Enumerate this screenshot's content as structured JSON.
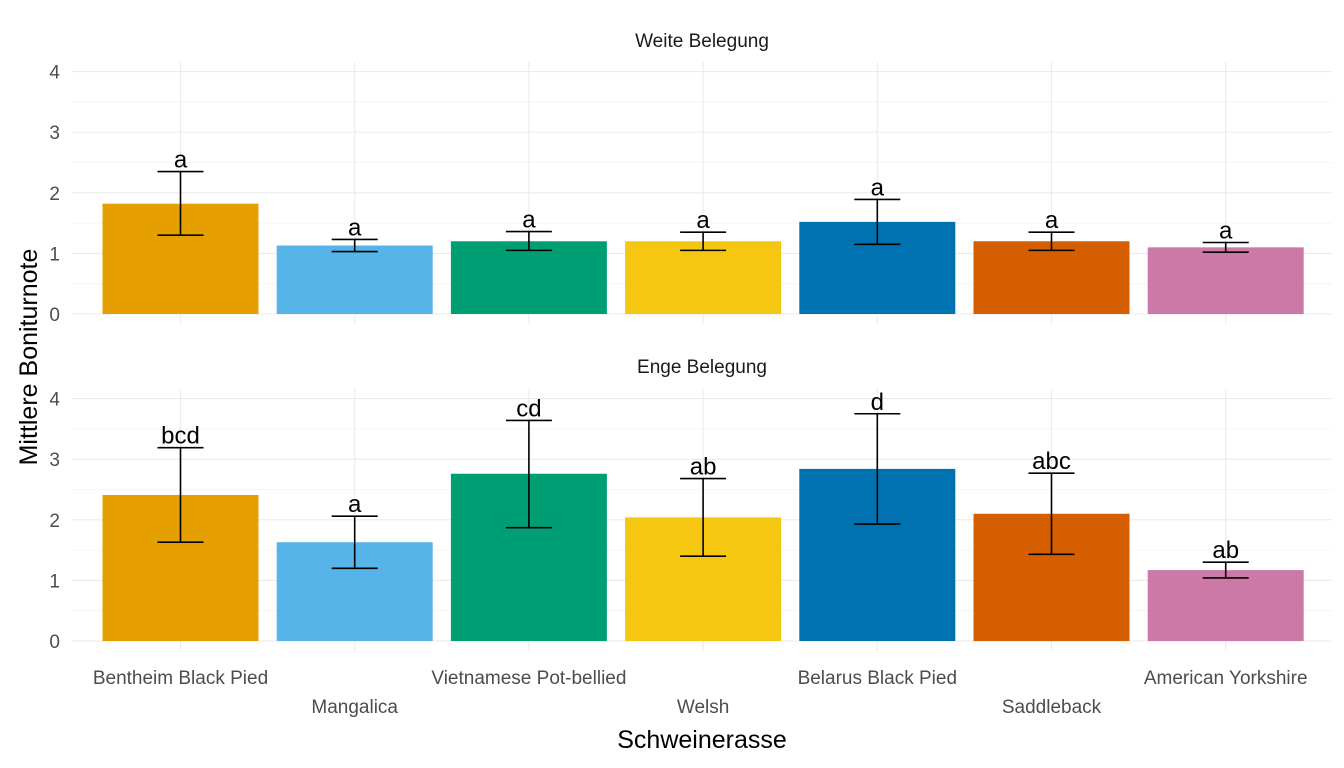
{
  "chart_data": {
    "type": "bar",
    "xlabel": "Schweinerasse",
    "ylabel": "Mittlere Boniturnote",
    "ylim": [
      0,
      4.3
    ],
    "yticks": [
      0,
      1,
      2,
      3,
      4
    ],
    "grid": true,
    "categories": [
      "Bentheim Black Pied",
      "Mangalica",
      "Vietnamese Pot-bellied",
      "Welsh",
      "Belarus Black Pied",
      "Saddleback",
      "American Yorkshire"
    ],
    "colors": [
      "#E69F00",
      "#56B4E9",
      "#009E73",
      "#F5C710",
      "#0072B2",
      "#D55E00",
      "#CC79A7"
    ],
    "panels": [
      {
        "name": "Weite Belegung",
        "values": [
          1.82,
          1.13,
          1.2,
          1.2,
          1.52,
          1.2,
          1.1
        ],
        "err_low": [
          1.3,
          1.03,
          1.05,
          1.05,
          1.15,
          1.05,
          1.02
        ],
        "err_high": [
          2.35,
          1.23,
          1.36,
          1.35,
          1.89,
          1.35,
          1.18
        ],
        "labels": [
          "a",
          "a",
          "a",
          "a",
          "a",
          "a",
          "a"
        ]
      },
      {
        "name": "Enge Belegung",
        "values": [
          2.41,
          1.63,
          2.76,
          2.04,
          2.84,
          2.1,
          1.17
        ],
        "err_low": [
          1.63,
          1.2,
          1.87,
          1.4,
          1.93,
          1.43,
          1.04
        ],
        "err_high": [
          3.19,
          2.06,
          3.64,
          2.68,
          3.75,
          2.77,
          1.3
        ],
        "labels": [
          "bcd",
          "a",
          "cd",
          "ab",
          "d",
          "abc",
          "ab"
        ]
      }
    ]
  }
}
